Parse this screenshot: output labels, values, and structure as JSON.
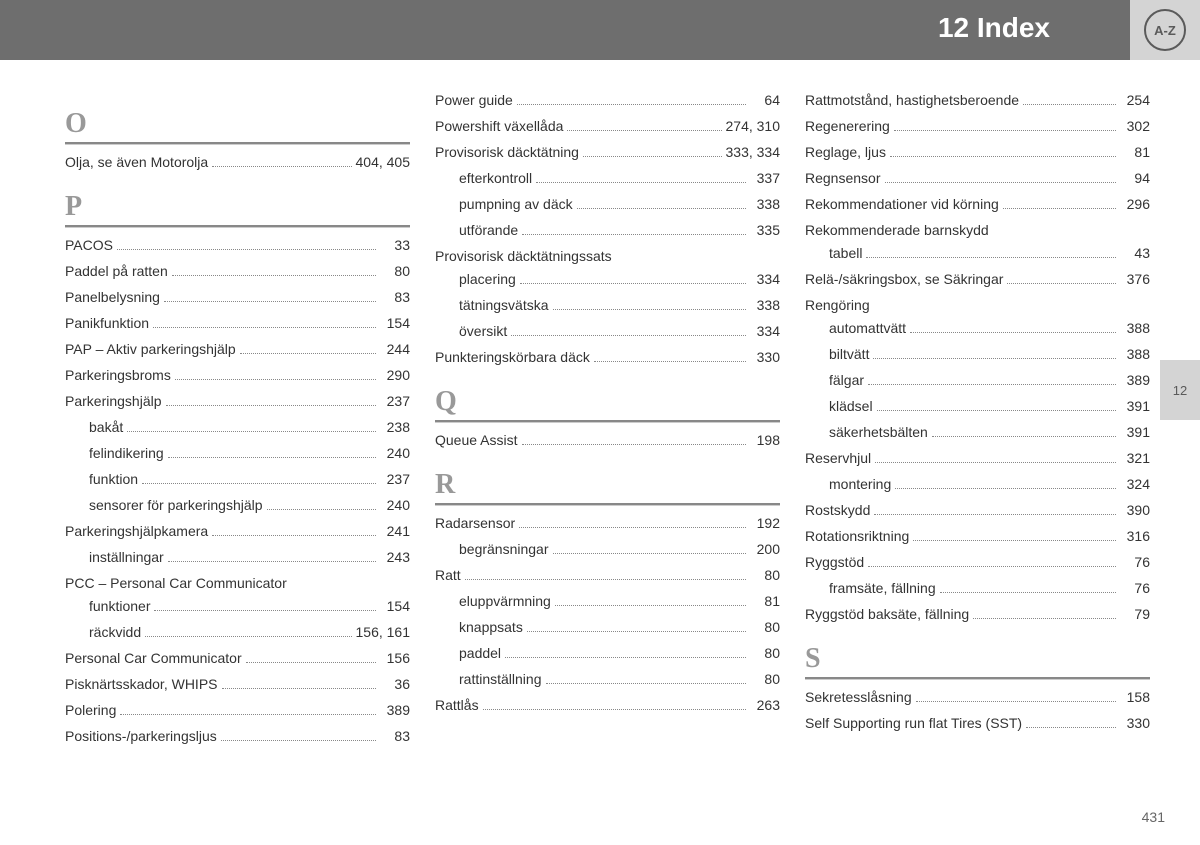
{
  "header": {
    "title": "12 Index",
    "badge": "A-Z"
  },
  "side_tab": "12",
  "page_number": "431",
  "colors": {
    "header_bg": "#6e6e6e",
    "badge_bg": "#d4d4d4",
    "text": "#333333",
    "letter": "#999999",
    "divider": "#888888"
  },
  "columns": [
    {
      "sections": [
        {
          "letter": "O",
          "entries": [
            {
              "label": "Olja, se även Motorolja",
              "page": "404, 405"
            }
          ]
        },
        {
          "letter": "P",
          "entries": [
            {
              "label": "PACOS",
              "page": "33"
            },
            {
              "label": "Paddel på ratten",
              "page": "80"
            },
            {
              "label": "Panelbelysning",
              "page": "83"
            },
            {
              "label": "Panikfunktion",
              "page": "154"
            },
            {
              "label": "PAP – Aktiv parkeringshjälp",
              "page": "244"
            },
            {
              "label": "Parkeringsbroms",
              "page": "290"
            },
            {
              "label": "Parkeringshjälp",
              "page": "237"
            },
            {
              "label": "bakåt",
              "page": "238",
              "sub": true
            },
            {
              "label": "felindikering",
              "page": "240",
              "sub": true
            },
            {
              "label": "funktion",
              "page": "237",
              "sub": true
            },
            {
              "label": "sensorer för parkeringshjälp",
              "page": "240",
              "sub": true
            },
            {
              "label": "Parkeringshjälpkamera",
              "page": "241"
            },
            {
              "label": "inställningar",
              "page": "243",
              "sub": true
            },
            {
              "label": "PCC – Personal Car Communicator",
              "noPage": true
            },
            {
              "label": "funktioner",
              "page": "154",
              "sub": true
            },
            {
              "label": "räckvidd",
              "page": "156, 161",
              "sub": true
            },
            {
              "label": "Personal Car Communicator",
              "page": "156"
            },
            {
              "label": "Pisknärtsskador, WHIPS",
              "page": "36"
            },
            {
              "label": "Polering",
              "page": "389"
            },
            {
              "label": "Positions-/parkeringsljus",
              "page": "83"
            }
          ]
        }
      ]
    },
    {
      "sections": [
        {
          "entries": [
            {
              "label": "Power guide",
              "page": "64"
            },
            {
              "label": "Powershift växellåda",
              "page": "274, 310"
            },
            {
              "label": "Provisorisk däcktätning",
              "page": "333, 334"
            },
            {
              "label": "efterkontroll",
              "page": "337",
              "sub": true
            },
            {
              "label": "pumpning av däck",
              "page": "338",
              "sub": true
            },
            {
              "label": "utförande",
              "page": "335",
              "sub": true
            },
            {
              "label": "Provisorisk däcktätningssats",
              "noPage": true
            },
            {
              "label": "placering",
              "page": "334",
              "sub": true
            },
            {
              "label": "tätningsvätska",
              "page": "338",
              "sub": true
            },
            {
              "label": "översikt",
              "page": "334",
              "sub": true
            },
            {
              "label": "Punkteringskörbara däck",
              "page": "330"
            }
          ]
        },
        {
          "letter": "Q",
          "entries": [
            {
              "label": "Queue Assist",
              "page": "198"
            }
          ]
        },
        {
          "letter": "R",
          "entries": [
            {
              "label": "Radarsensor",
              "page": "192"
            },
            {
              "label": "begränsningar",
              "page": "200",
              "sub": true
            },
            {
              "label": "Ratt",
              "page": "80"
            },
            {
              "label": "eluppvärmning",
              "page": "81",
              "sub": true
            },
            {
              "label": "knappsats",
              "page": "80",
              "sub": true
            },
            {
              "label": "paddel",
              "page": "80",
              "sub": true
            },
            {
              "label": "rattinställning",
              "page": "80",
              "sub": true
            },
            {
              "label": "Rattlås",
              "page": "263"
            }
          ]
        }
      ]
    },
    {
      "sections": [
        {
          "entries": [
            {
              "label": "Rattmotstånd, hastighetsberoende",
              "page": "254"
            },
            {
              "label": "Regenerering",
              "page": "302"
            },
            {
              "label": "Reglage, ljus",
              "page": "81"
            },
            {
              "label": "Regnsensor",
              "page": "94"
            },
            {
              "label": "Rekommendationer vid körning",
              "page": "296"
            },
            {
              "label": "Rekommenderade barnskydd",
              "noPage": true
            },
            {
              "label": "tabell",
              "page": "43",
              "sub": true
            },
            {
              "label": "Relä-/säkringsbox, se Säkringar",
              "page": "376"
            },
            {
              "label": "Rengöring",
              "noPage": true
            },
            {
              "label": "automattvätt",
              "page": "388",
              "sub": true
            },
            {
              "label": "biltvätt",
              "page": "388",
              "sub": true
            },
            {
              "label": "fälgar",
              "page": "389",
              "sub": true
            },
            {
              "label": "klädsel",
              "page": "391",
              "sub": true
            },
            {
              "label": "säkerhetsbälten",
              "page": "391",
              "sub": true
            },
            {
              "label": "Reservhjul",
              "page": "321"
            },
            {
              "label": "montering",
              "page": "324",
              "sub": true
            },
            {
              "label": "Rostskydd",
              "page": "390"
            },
            {
              "label": "Rotationsriktning",
              "page": "316"
            },
            {
              "label": "Ryggstöd",
              "page": "76"
            },
            {
              "label": "framsäte, fällning",
              "page": "76",
              "sub": true
            },
            {
              "label": "Ryggstöd baksäte, fällning",
              "page": "79"
            }
          ]
        },
        {
          "letter": "S",
          "entries": [
            {
              "label": "Sekretesslåsning",
              "page": "158"
            },
            {
              "label": "Self Supporting run flat Tires (SST)",
              "page": "330"
            }
          ]
        }
      ]
    }
  ]
}
